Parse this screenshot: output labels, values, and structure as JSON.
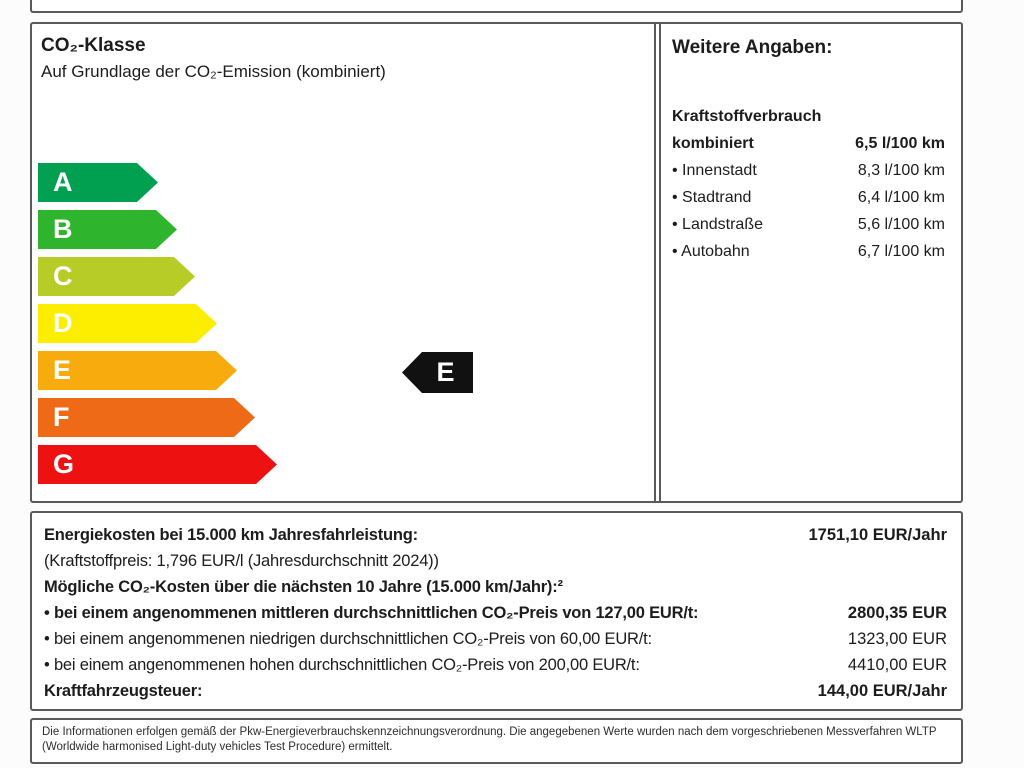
{
  "co2_panel": {
    "title": "CO₂-Klasse",
    "subtitle": "Auf Grundlage der CO₂-Emission (kombiniert)",
    "classes": [
      {
        "letter": "A",
        "color": "#00a050"
      },
      {
        "letter": "B",
        "color": "#2fb52d"
      },
      {
        "letter": "C",
        "color": "#b8cc28"
      },
      {
        "letter": "D",
        "color": "#fdee00"
      },
      {
        "letter": "E",
        "color": "#f8ab0c"
      },
      {
        "letter": "F",
        "color": "#ee6a16"
      },
      {
        "letter": "G",
        "color": "#ee1111"
      }
    ],
    "vehicle_class": "E"
  },
  "details_panel": {
    "title": "Weitere Angaben:",
    "fuel_heading": "Kraftstoffverbrauch",
    "rows": [
      {
        "label": "kombiniert",
        "value": "6,5 l/100 km"
      },
      {
        "label": "• Innenstadt",
        "value": "8,3 l/100 km"
      },
      {
        "label": "• Stadtrand",
        "value": "6,4 l/100 km"
      },
      {
        "label": "• Landstraße",
        "value": "5,6 l/100 km"
      },
      {
        "label": "• Autobahn",
        "value": "6,7 l/100 km"
      }
    ]
  },
  "costs_panel": {
    "rows": [
      {
        "label": "Energiekosten bei 15.000 km Jahresfahrleistung:",
        "value": "1751,10 EUR/Jahr"
      },
      {
        "label": "(Kraftstoffpreis: 1,796 EUR/l (Jahresdurchschnitt 2024))",
        "value": ""
      },
      {
        "label": "Mögliche CO₂-Kosten über die nächsten 10 Jahre (15.000 km/Jahr):²",
        "value": ""
      },
      {
        "label": "• bei einem angenommenen mittleren durchschnittlichen CO₂-Preis von 127,00 EUR/t:",
        "value": "2800,35 EUR"
      },
      {
        "label": "• bei einem angenommenen niedrigen durchschnittlichen CO₂-Preis von 60,00 EUR/t:",
        "value": "1323,00 EUR"
      },
      {
        "label": "• bei einem angenommenen hohen durchschnittlichen CO₂-Preis von 200,00 EUR/t:",
        "value": "4410,00 EUR"
      },
      {
        "label": "Kraftfahrzeugsteuer:",
        "value": "144,00 EUR/Jahr"
      }
    ]
  },
  "footer": {
    "text": "Die Informationen erfolgen gemäß der Pkw-Energieverbrauchskennzeichnungsverordnung. Die angegebenen Werte wurden nach dem vorgeschriebenen Messverfahren WLTP (Worldwide harmonised Light-duty vehicles Test Procedure) ermittelt."
  },
  "colors": {
    "border": "#5a5a5a",
    "marker": "#111111"
  }
}
